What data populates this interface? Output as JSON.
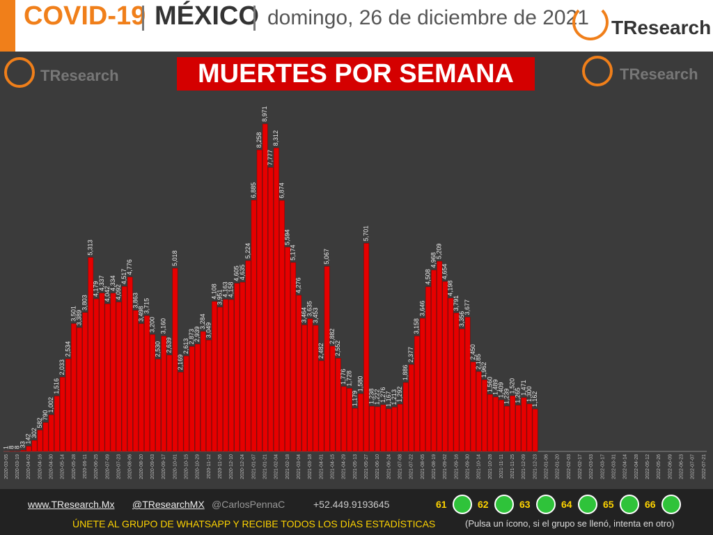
{
  "header": {
    "topic": "COVID-19",
    "country": "MÉXICO",
    "date": "domingo, 26 de diciembre de 2021",
    "logo": "TResearch"
  },
  "chart_data": {
    "type": "bar",
    "title": "MUERTES POR SEMANA",
    "color": "#e60000",
    "categories": [
      "2020-03-05",
      null,
      "2020-03-19",
      null,
      "2020-04-02",
      null,
      "2020-04-16",
      null,
      "2020-04-30",
      null,
      "2020-05-14",
      null,
      "2020-05-28",
      null,
      "2020-06-11",
      null,
      "2020-06-25",
      null,
      "2020-07-09",
      null,
      "2020-07-23",
      null,
      "2020-08-06",
      null,
      "2020-08-20",
      null,
      "2020-09-03",
      null,
      "2020-09-17",
      null,
      "2020-10-01",
      null,
      "2020-10-15",
      null,
      "2020-10-29",
      null,
      "2020-11-12",
      null,
      "2020-11-26",
      null,
      "2020-12-10",
      null,
      "2020-12-24",
      null,
      "2021-01-07",
      null,
      "2021-01-21",
      null,
      "2021-02-04",
      null,
      "2021-02-18",
      null,
      "2021-03-04",
      null,
      "2021-03-18",
      null,
      "2021-04-01",
      null,
      "2021-04-15",
      null,
      "2021-04-29",
      null,
      "2021-05-13",
      null,
      "2021-05-27",
      null,
      "2021-06-10",
      null,
      "2021-06-24",
      null,
      "2021-07-08",
      null,
      "2021-07-22",
      null,
      "2021-08-05",
      null,
      "2021-08-19",
      null,
      "2021-09-02",
      null,
      "2021-09-16",
      null,
      "2021-09-30",
      null,
      "2021-10-14",
      null,
      "2021-10-28",
      null,
      "2021-11-11",
      null,
      "2021-11-25",
      null,
      "2021-12-09",
      null,
      "2021-12-23",
      null,
      "2022-01-06",
      null,
      "2022-01-20",
      null,
      "2022-02-03",
      null,
      "2022-02-17",
      null,
      "2022-03-03",
      null,
      "2022-03-17",
      null,
      "2022-03-31",
      null,
      "2022-04-14",
      null,
      "2022-04-28",
      null,
      "2022-05-12",
      null,
      "2022-05-26",
      null,
      "2022-06-09",
      null,
      "2022-06-23",
      null,
      "2022-07-07",
      null,
      "2022-07-21"
    ],
    "values": [
      1,
      8,
      8,
      33,
      142,
      302,
      582,
      790,
      1002,
      1516,
      2033,
      2534,
      3501,
      3389,
      3803,
      5313,
      4179,
      4337,
      4042,
      4334,
      4092,
      4517,
      4776,
      3863,
      3498,
      3715,
      3200,
      2530,
      3160,
      2639,
      5018,
      2169,
      2613,
      2873,
      2939,
      3284,
      3049,
      4108,
      3951,
      4163,
      4158,
      4605,
      4635,
      5224,
      6885,
      8258,
      8971,
      7777,
      8312,
      6874,
      5594,
      5174,
      4276,
      3464,
      3635,
      3453,
      2482,
      5067,
      2882,
      2552,
      1776,
      1728,
      1179,
      1580,
      5701,
      1238,
      1222,
      1276,
      1167,
      1213,
      1292,
      1886,
      2377,
      3158,
      3646,
      4508,
      4968,
      5209,
      4654,
      4198,
      3791,
      3356,
      3677,
      2450,
      2185,
      1962,
      1560,
      1489,
      1409,
      1239,
      1520,
      1265,
      1471,
      1300,
      1162,
      null,
      null,
      null,
      null,
      null,
      null,
      null,
      null,
      null,
      null,
      null,
      null,
      null,
      null,
      null,
      null,
      null,
      null,
      null,
      null,
      null,
      null,
      null,
      null,
      null,
      null,
      null,
      null,
      null,
      null
    ],
    "value_labels": [
      "1",
      "8",
      "8",
      "33",
      "142",
      "302",
      "582",
      "790",
      "1,002",
      "1,516",
      "2,033",
      "2,534",
      "3,501",
      "3,389",
      "3,803",
      "5,313",
      "4,179",
      "4,337",
      "4,042",
      "4,334",
      "4,092",
      "4,517",
      "4,776",
      "3,863",
      "3,498",
      "3,715",
      "3,200",
      "2,530",
      "3,160",
      "2,639",
      "5,018",
      "2,169",
      "2,613",
      "2,873",
      "2,939",
      "3,284",
      "3,049",
      "4,108",
      "3,951",
      "4,163",
      "4,158",
      "4,605",
      "4,635",
      "5,224",
      "6,885",
      "8,258",
      "8,971",
      "7,777",
      "8,312",
      "6,874",
      "5,594",
      "5,174",
      "4,276",
      "3,464",
      "3,635",
      "3,453",
      "2,482",
      "5,067",
      "2,882",
      "2,552",
      "1,776",
      "1,728",
      "1,179",
      "1,580",
      "5,701",
      "1,238",
      "1,222",
      "1,276",
      "1,167",
      "1,213",
      "1,292",
      "1,886",
      "2,377",
      "3,158",
      "3,646",
      "4,508",
      "4,968",
      "5,209",
      "4,654",
      "4,198",
      "3,791",
      "3,356",
      "3,677",
      "2,450",
      "2,185",
      "1,962",
      "1,560",
      "1,489",
      "1,409",
      "1,239",
      "1,520",
      "1,265",
      "1,471",
      "1,300",
      "1,162",
      null,
      null,
      null,
      null,
      null,
      null,
      null,
      null,
      null,
      null,
      null,
      null,
      null,
      null,
      null,
      null,
      null,
      null,
      null,
      null,
      null,
      null,
      null,
      null,
      null,
      null,
      null,
      null,
      null,
      null
    ],
    "ylim": [
      0,
      10000
    ],
    "grid": false
  },
  "footer": {
    "website": "www.TResearch.Mx",
    "twitter": "@TResearchMX",
    "author": "@CarlosPennaC",
    "phone": "+52.449.9193645",
    "groups": [
      "61",
      "62",
      "63",
      "64",
      "65",
      "66"
    ],
    "cta": "ÚNETE AL GRUPO DE WHATSAPP Y RECIBE TODOS LOS DÍAS ESTADÍSTICAS",
    "note": "(Pulsa un ícono, si el grupo se llenó, intenta en otro)"
  }
}
